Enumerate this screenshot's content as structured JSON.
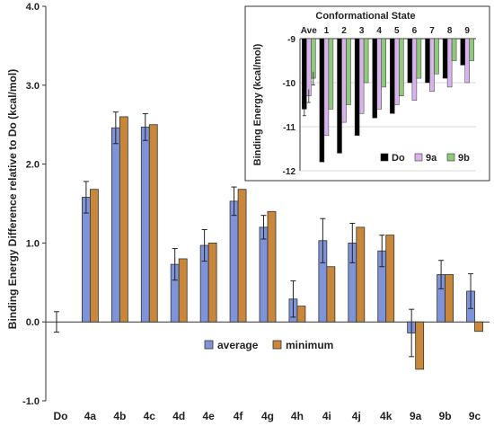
{
  "chart_data": [
    {
      "type": "bar",
      "ylabel": "Binding Energy Difference relative to Do (kcal/mol)",
      "ylim": [
        -1.0,
        4.0
      ],
      "yticks": [
        "-1.0",
        "0.0",
        "1.0",
        "2.0",
        "3.0",
        "4.0"
      ],
      "categories": [
        "Do",
        "4a",
        "4b",
        "4c",
        "4d",
        "4e",
        "4f",
        "4g",
        "4h",
        "4i",
        "4j",
        "4k",
        "9a",
        "9b",
        "9c"
      ],
      "series": [
        {
          "name": "average",
          "color": "#7f93d8",
          "values": [
            0.0,
            1.58,
            2.46,
            2.47,
            0.73,
            0.97,
            1.53,
            1.2,
            0.29,
            1.03,
            1.0,
            0.9,
            -0.14,
            0.6,
            0.39
          ],
          "errors": [
            0.13,
            0.2,
            0.2,
            0.17,
            0.2,
            0.2,
            0.18,
            0.15,
            0.23,
            0.28,
            0.25,
            0.2,
            0.3,
            0.18,
            0.22
          ]
        },
        {
          "name": "minimum",
          "color": "#c9873b",
          "values": [
            0.0,
            1.68,
            2.6,
            2.5,
            0.8,
            1.0,
            1.68,
            1.4,
            0.2,
            0.7,
            1.2,
            1.1,
            -0.6,
            0.6,
            -0.12
          ]
        }
      ],
      "legend": "bottom-center",
      "grid": false
    },
    {
      "type": "bar",
      "title": "Conformational State",
      "ylabel": "Binding Energy (kcal/mol)",
      "ylim": [
        -12,
        -9
      ],
      "yticks": [
        "-9",
        "-10",
        "-11",
        "-12"
      ],
      "categories": [
        "Ave",
        "1",
        "2",
        "3",
        "4",
        "5",
        "6",
        "7",
        "8",
        "9"
      ],
      "series": [
        {
          "name": "Do",
          "color": "#000000",
          "values": [
            -10.6,
            -11.8,
            -11.6,
            -11.2,
            -10.8,
            -10.7,
            -10.0,
            -10.0,
            -9.9,
            -9.6
          ],
          "errors": [
            0.15,
            0,
            0,
            0,
            0,
            0,
            0,
            0,
            0,
            0
          ]
        },
        {
          "name": "9a",
          "color": "#d9b3ec",
          "values": [
            -10.3,
            -11.2,
            -10.9,
            -10.7,
            -10.6,
            -10.5,
            -10.4,
            -10.2,
            -10.1,
            -10.0
          ],
          "errors": [
            0.15,
            0,
            0,
            0,
            0,
            0,
            0,
            0,
            0,
            0
          ]
        },
        {
          "name": "9b",
          "color": "#8fc97c",
          "values": [
            -9.9,
            -10.6,
            -10.5,
            -10.0,
            -10.1,
            -10.3,
            -9.9,
            -9.8,
            -9.5,
            -9.5
          ],
          "errors": [
            0.15,
            0,
            0,
            0,
            0,
            0,
            0,
            0,
            0,
            0
          ]
        }
      ],
      "legend": "bottom-right",
      "grid": true
    }
  ]
}
